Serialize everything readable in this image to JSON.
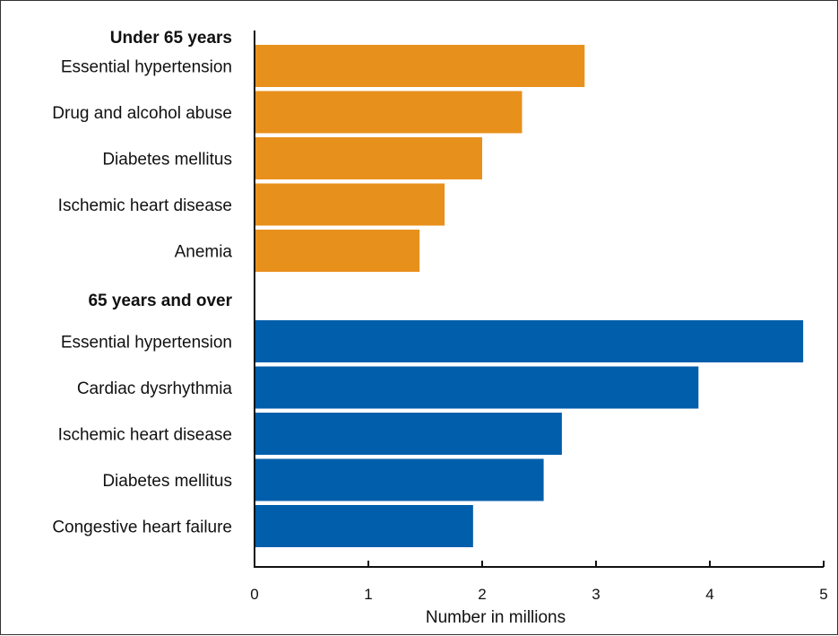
{
  "chart_data": {
    "type": "bar",
    "orientation": "horizontal",
    "xlabel": "Number in millions",
    "xlim": [
      0,
      5
    ],
    "xticks": [
      "0",
      "1",
      "2",
      "3",
      "4",
      "5"
    ],
    "grid": false,
    "groups": [
      {
        "name": "Under 65 years",
        "color": "#E8901C",
        "categories": [
          "Essential hypertension",
          "Drug and alcohol abuse",
          "Diabetes mellitus",
          "Ischemic heart disease",
          "Anemia"
        ],
        "values": [
          2.9,
          2.35,
          2.0,
          1.67,
          1.45
        ]
      },
      {
        "name": "65 years and over",
        "color": "#005EAB",
        "categories": [
          "Essential hypertension",
          "Cardiac dysrhythmia",
          "Ischemic heart disease",
          "Diabetes mellitus",
          "Congestive heart failure"
        ],
        "values": [
          4.82,
          3.9,
          2.7,
          2.54,
          1.92
        ]
      }
    ]
  }
}
